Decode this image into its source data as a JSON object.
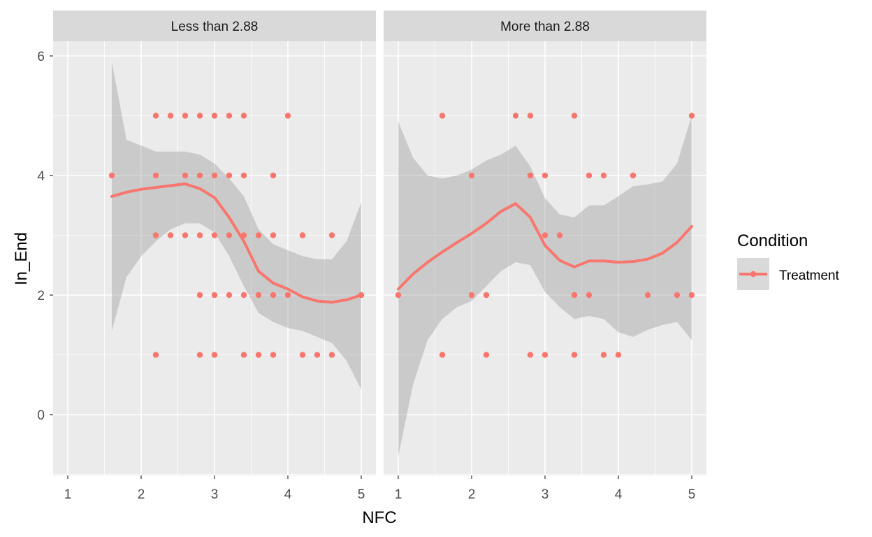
{
  "chart_data": {
    "type": "scatter",
    "xlabel": "NFC",
    "ylabel": "In_End",
    "xlim": [
      0.8,
      5.2
    ],
    "ylim": [
      -1,
      6.4
    ],
    "x_ticks": [
      "1",
      "2",
      "3",
      "4",
      "5"
    ],
    "y_ticks": [
      "0",
      "2",
      "4",
      "6"
    ],
    "grid": true,
    "legend": {
      "title": "Condition",
      "position": "right",
      "entries": [
        {
          "label": "Treatment",
          "color": "#F8766D"
        }
      ]
    },
    "colors": {
      "series": "#F8766D",
      "panel_background": "#EBEBEB",
      "strip_background": "#D9D9D9",
      "ribbon": "#999999"
    },
    "panels": [
      {
        "strip": "Less than 2.88",
        "points": [
          [
            1.6,
            4
          ],
          [
            2.2,
            5
          ],
          [
            2.4,
            5
          ],
          [
            2.6,
            5
          ],
          [
            2.8,
            5
          ],
          [
            3.0,
            5
          ],
          [
            3.2,
            5
          ],
          [
            3.4,
            5
          ],
          [
            4.0,
            5
          ],
          [
            2.2,
            4
          ],
          [
            2.6,
            4
          ],
          [
            2.8,
            4
          ],
          [
            3.0,
            4
          ],
          [
            3.2,
            4
          ],
          [
            3.4,
            4
          ],
          [
            3.8,
            4
          ],
          [
            2.2,
            3
          ],
          [
            2.4,
            3
          ],
          [
            2.6,
            3
          ],
          [
            2.8,
            3
          ],
          [
            3.0,
            3
          ],
          [
            3.2,
            3
          ],
          [
            3.4,
            3
          ],
          [
            3.6,
            3
          ],
          [
            3.8,
            3
          ],
          [
            4.2,
            3
          ],
          [
            4.6,
            3
          ],
          [
            2.8,
            2
          ],
          [
            3.0,
            2
          ],
          [
            3.2,
            2
          ],
          [
            3.4,
            2
          ],
          [
            3.6,
            2
          ],
          [
            3.8,
            2
          ],
          [
            4.0,
            2
          ],
          [
            5.0,
            2
          ],
          [
            2.2,
            1
          ],
          [
            2.8,
            1
          ],
          [
            3.0,
            1
          ],
          [
            3.4,
            1
          ],
          [
            3.6,
            1
          ],
          [
            3.8,
            1
          ],
          [
            4.2,
            1
          ],
          [
            4.4,
            1
          ],
          [
            4.6,
            1
          ]
        ],
        "smooth": {
          "x": [
            1.6,
            1.8,
            2.0,
            2.2,
            2.4,
            2.6,
            2.8,
            3.0,
            3.2,
            3.4,
            3.6,
            3.8,
            4.0,
            4.2,
            4.4,
            4.6,
            4.8,
            5.0
          ],
          "y": [
            3.65,
            3.72,
            3.77,
            3.8,
            3.83,
            3.86,
            3.78,
            3.63,
            3.3,
            2.9,
            2.4,
            2.2,
            2.1,
            1.97,
            1.9,
            1.88,
            1.92,
            2.0
          ],
          "lower": [
            1.4,
            2.3,
            2.65,
            2.9,
            3.1,
            3.2,
            3.2,
            3.05,
            2.65,
            2.15,
            1.7,
            1.55,
            1.45,
            1.4,
            1.3,
            1.2,
            0.9,
            0.42
          ],
          "upper": [
            5.9,
            4.6,
            4.5,
            4.4,
            4.4,
            4.4,
            4.35,
            4.2,
            3.95,
            3.65,
            3.1,
            2.85,
            2.75,
            2.65,
            2.6,
            2.6,
            2.9,
            3.55
          ]
        }
      },
      {
        "strip": "More than 2.88",
        "points": [
          [
            1.6,
            5
          ],
          [
            2.6,
            5
          ],
          [
            2.8,
            5
          ],
          [
            3.4,
            5
          ],
          [
            5.0,
            5
          ],
          [
            2.0,
            4
          ],
          [
            2.8,
            4
          ],
          [
            3.0,
            4
          ],
          [
            3.6,
            4
          ],
          [
            3.8,
            4
          ],
          [
            4.2,
            4
          ],
          [
            3.0,
            3
          ],
          [
            3.2,
            3
          ],
          [
            1.0,
            2
          ],
          [
            2.0,
            2
          ],
          [
            2.2,
            2
          ],
          [
            3.4,
            2
          ],
          [
            3.6,
            2
          ],
          [
            4.4,
            2
          ],
          [
            4.8,
            2
          ],
          [
            5.0,
            2
          ],
          [
            1.6,
            1
          ],
          [
            2.2,
            1
          ],
          [
            2.8,
            1
          ],
          [
            3.0,
            1
          ],
          [
            3.4,
            1
          ],
          [
            3.8,
            1
          ],
          [
            4.0,
            1
          ]
        ],
        "smooth": {
          "x": [
            1.0,
            1.2,
            1.4,
            1.6,
            1.8,
            2.0,
            2.2,
            2.4,
            2.6,
            2.8,
            3.0,
            3.2,
            3.4,
            3.6,
            3.8,
            4.0,
            4.2,
            4.4,
            4.6,
            4.8,
            5.0
          ],
          "y": [
            2.1,
            2.35,
            2.55,
            2.72,
            2.88,
            3.03,
            3.2,
            3.4,
            3.53,
            3.3,
            2.83,
            2.58,
            2.47,
            2.57,
            2.57,
            2.55,
            2.56,
            2.6,
            2.7,
            2.88,
            3.15
          ],
          "lower": [
            -0.7,
            0.5,
            1.25,
            1.6,
            1.8,
            1.9,
            2.15,
            2.4,
            2.55,
            2.5,
            2.05,
            1.8,
            1.6,
            1.65,
            1.6,
            1.38,
            1.3,
            1.42,
            1.5,
            1.55,
            1.25
          ],
          "upper": [
            4.9,
            4.3,
            4.0,
            3.95,
            4.0,
            4.1,
            4.25,
            4.35,
            4.5,
            4.15,
            3.62,
            3.35,
            3.3,
            3.5,
            3.5,
            3.65,
            3.82,
            3.85,
            3.9,
            4.2,
            5.0
          ]
        }
      }
    ]
  }
}
